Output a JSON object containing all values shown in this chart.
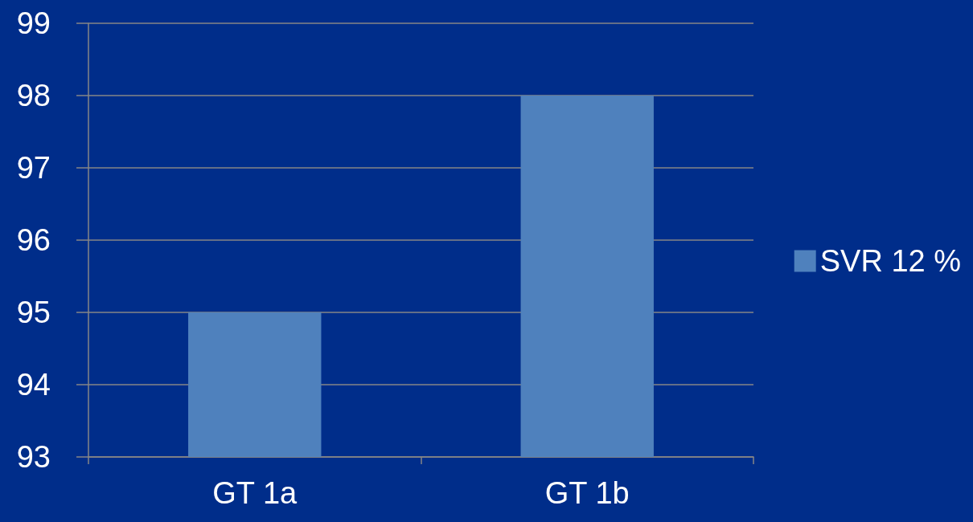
{
  "chart_data": {
    "type": "bar",
    "categories": [
      "GT 1a",
      "GT 1b"
    ],
    "series": [
      {
        "name": "SVR 12 %",
        "color": "#4f81bd",
        "values": [
          95,
          98
        ]
      }
    ],
    "ylim": [
      93,
      99
    ],
    "yticks": [
      93,
      94,
      95,
      96,
      97,
      98,
      99
    ],
    "grid": "y",
    "legend": "right"
  }
}
